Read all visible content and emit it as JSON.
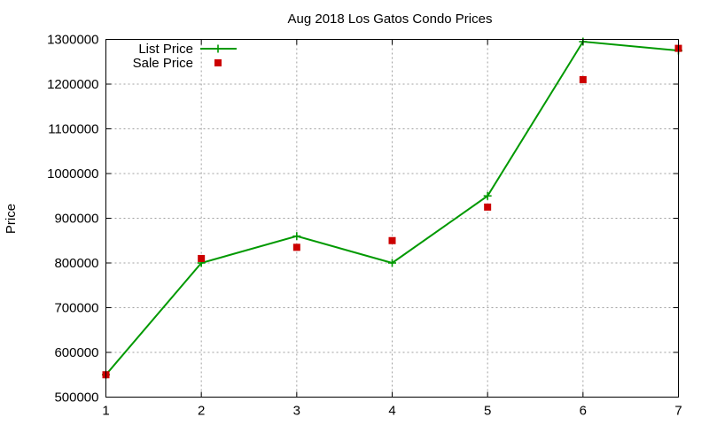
{
  "chart_data": {
    "type": "line",
    "title": "Aug 2018 Los Gatos Condo Prices",
    "xlabel": "",
    "ylabel": "Price",
    "x": [
      1,
      2,
      3,
      4,
      5,
      6,
      7
    ],
    "xlim": [
      1,
      7
    ],
    "ylim": [
      500000,
      1300000
    ],
    "xticks": [
      "1",
      "2",
      "3",
      "4",
      "5",
      "6",
      "7"
    ],
    "yticks": [
      "500000",
      "600000",
      "700000",
      "800000",
      "900000",
      "1000000",
      "1100000",
      "1200000",
      "1300000"
    ],
    "grid": true,
    "legend_position": "top-left",
    "series": [
      {
        "name": "List Price",
        "style": "line-plus",
        "color": "#009900",
        "values": [
          550000,
          800000,
          860000,
          800000,
          950000,
          1295000,
          1275000
        ]
      },
      {
        "name": "Sale Price",
        "style": "square",
        "color": "#cc0000",
        "values": [
          550000,
          810000,
          835000,
          850000,
          925000,
          1210000,
          1280000
        ]
      }
    ]
  }
}
